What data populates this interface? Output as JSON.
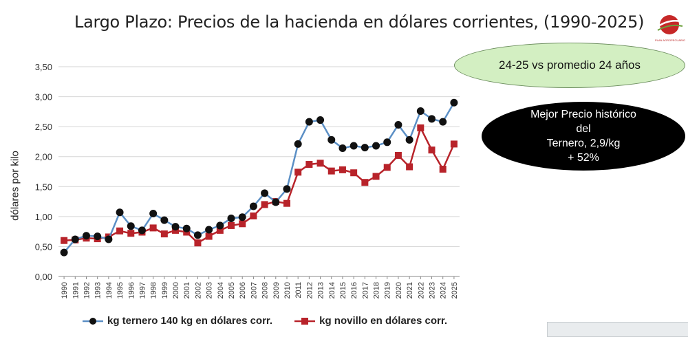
{
  "chart_data": {
    "type": "line",
    "title": "Largo Plazo: Precios de la  hacienda en dólares corrientes, (1990-2025)",
    "ylabel": "dólares por kilo",
    "xlabel": "",
    "ylim": [
      0,
      3.5
    ],
    "yticks": [
      "0,00",
      "0,50",
      "1,00",
      "1,50",
      "2,00",
      "2,50",
      "3,00",
      "3,50"
    ],
    "ytick_values": [
      0,
      0.5,
      1,
      1.5,
      2,
      2.5,
      3,
      3.5
    ],
    "grid": "horizontal",
    "legend_position": "bottom",
    "x": [
      "1990",
      "1991",
      "1992",
      "1993",
      "1994",
      "1995",
      "1996",
      "1997",
      "1998",
      "1999",
      "2000",
      "2001",
      "2002",
      "2003",
      "2004",
      "2005",
      "2006",
      "2007",
      "2008",
      "2009",
      "2010",
      "2011",
      "2012",
      "2013",
      "2014",
      "2015",
      "2016",
      "2017",
      "2018",
      "2019",
      "2020",
      "2021",
      "2022",
      "2023",
      "2024",
      "2025"
    ],
    "series": [
      {
        "name": "kg ternero 140 kg en dólares corr.",
        "color": "#5b8fc5",
        "marker": "circle",
        "values": [
          0.4,
          0.62,
          0.68,
          0.67,
          0.62,
          1.07,
          0.84,
          0.77,
          1.05,
          0.94,
          0.83,
          0.8,
          0.69,
          0.78,
          0.85,
          0.97,
          0.99,
          1.17,
          1.39,
          1.24,
          1.46,
          2.21,
          2.58,
          2.61,
          2.28,
          2.14,
          2.18,
          2.15,
          2.18,
          2.24,
          2.53,
          2.28,
          2.76,
          2.63,
          2.58,
          2.9
        ]
      },
      {
        "name": "kg novillo en dólares corr.",
        "color": "#b8232a",
        "marker": "square",
        "values": [
          0.6,
          0.61,
          0.64,
          0.63,
          0.66,
          0.76,
          0.72,
          0.74,
          0.81,
          0.71,
          0.77,
          0.74,
          0.56,
          0.67,
          0.77,
          0.85,
          0.88,
          1.01,
          1.2,
          1.25,
          1.22,
          1.74,
          1.87,
          1.89,
          1.76,
          1.78,
          1.73,
          1.57,
          1.67,
          1.82,
          2.02,
          1.83,
          2.48,
          2.11,
          1.79,
          2.21
        ]
      }
    ],
    "annotations": [
      "24-25 vs promedio 24 años",
      "Mejor Precio histórico\ndel\nTernero, 2,9/kg\n+ 52%"
    ]
  },
  "logo": {
    "text": "PLAN AGROPECUARIO",
    "color": "#b22222"
  }
}
